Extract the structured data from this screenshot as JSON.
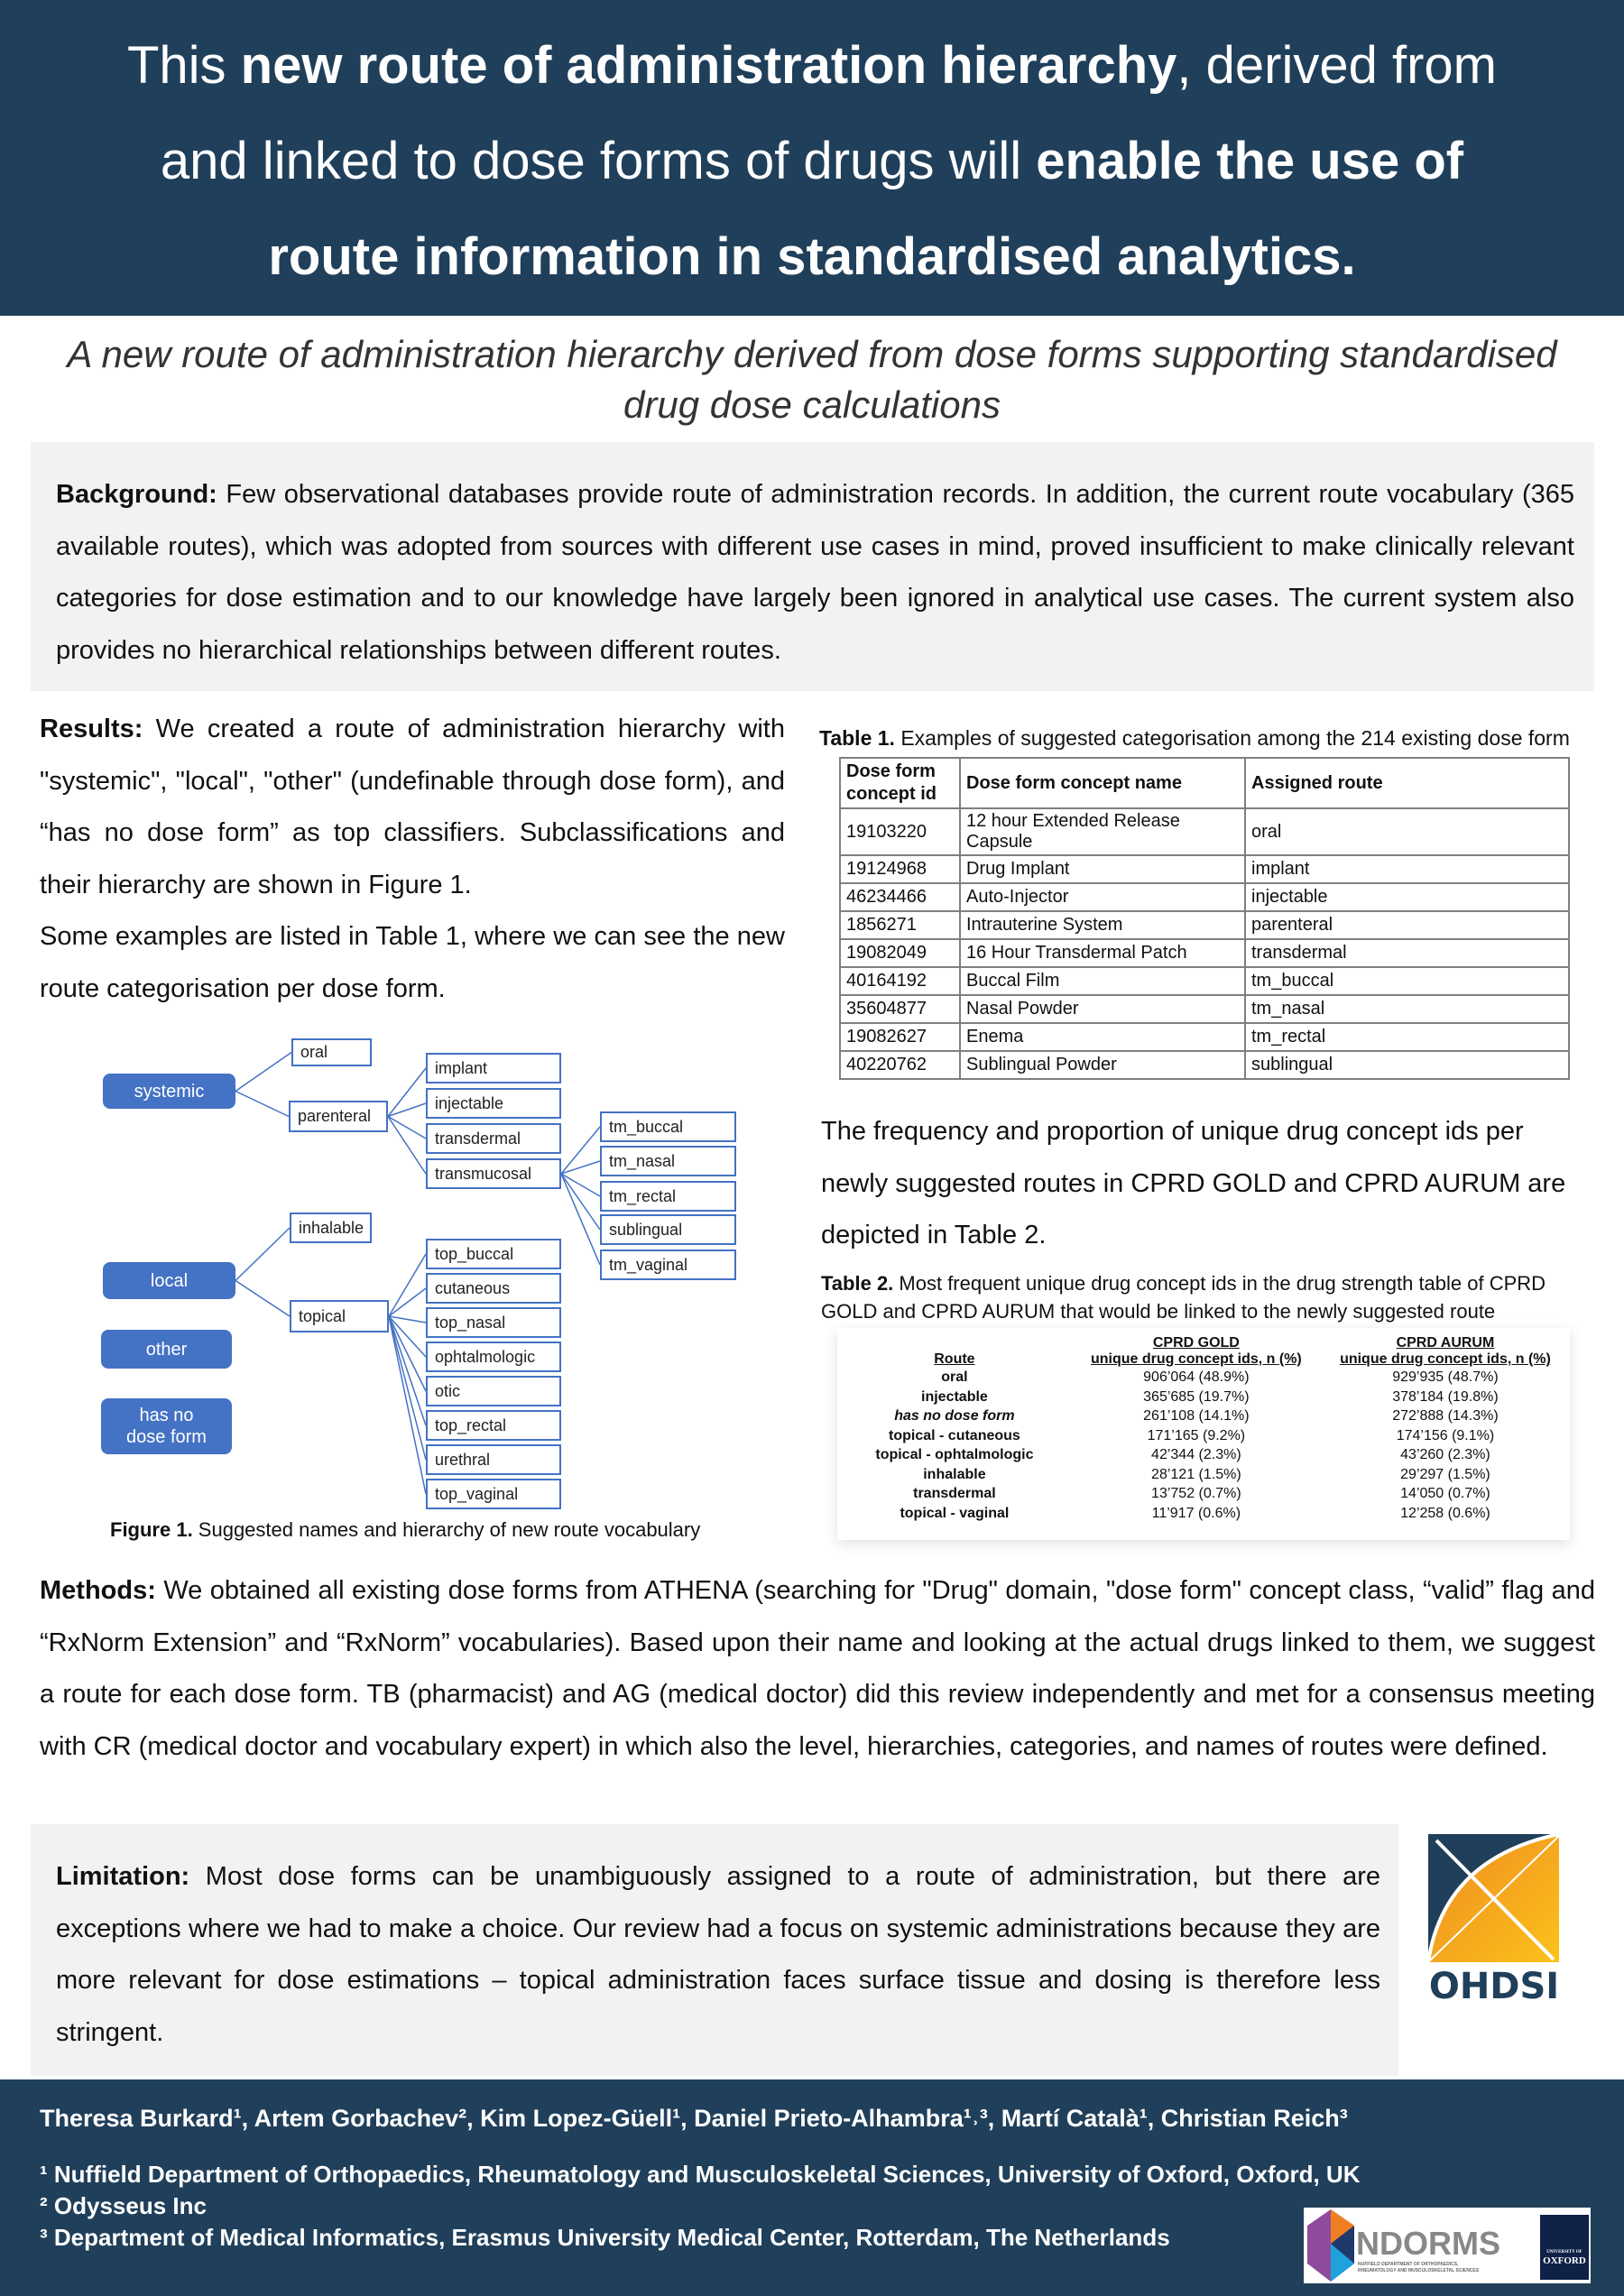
{
  "header": {
    "segments": [
      {
        "t": "This ",
        "b": false
      },
      {
        "t": "new route of administration hierarchy",
        "b": true
      },
      {
        "t": ", derived from and linked to dose forms of drugs will ",
        "b": false
      },
      {
        "t": "enable the use of route information in standardised analytics.",
        "b": true
      }
    ]
  },
  "subtitle": "A new route of administration hierarchy derived from dose forms supporting standardised drug dose calculations",
  "background": {
    "label": "Background:",
    "text": " Few observational databases provide route of administration records. In addition, the current route vocabulary (365 available routes), which was adopted from sources with different use cases in mind, proved insufficient to make clinically relevant categories for dose estimation and to our knowledge have largely been ignored in analytical use cases. The current system also provides no hierarchical relationships between different routes."
  },
  "results": {
    "label": "Results:",
    "text": " We created a route of administration hierarchy with \"systemic\", \"local\", \"other\" (undefinable through dose form), and “has no dose form” as top classifiers. Subclassifications and their hierarchy are shown in Figure 1.",
    "text2": "Some examples are listed in Table 1, where we can see the new route categorisation per dose form."
  },
  "table1": {
    "label": "Table 1.",
    "caption": " Examples of suggested categorisation among the 214 existing dose form",
    "headers": [
      "Dose form concept id",
      "Dose form concept name",
      "Assigned route"
    ],
    "rows": [
      [
        "19103220",
        "12 hour Extended Release Capsule",
        "oral"
      ],
      [
        "19124968",
        "Drug Implant",
        "implant"
      ],
      [
        "46234466",
        "Auto-Injector",
        "injectable"
      ],
      [
        "1856271",
        "Intrauterine System",
        "parenteral"
      ],
      [
        "19082049",
        "16 Hour Transdermal Patch",
        "transdermal"
      ],
      [
        "40164192",
        "Buccal Film",
        "tm_buccal"
      ],
      [
        "35604877",
        "Nasal Powder",
        "tm_nasal"
      ],
      [
        "19082627",
        "Enema",
        "tm_rectal"
      ],
      [
        "40220762",
        "Sublingual Powder",
        "sublingual"
      ]
    ]
  },
  "frequency_text": "The frequency and proportion of unique drug concept ids per newly suggested routes in CPRD GOLD and CPRD AURUM are depicted in Table 2.",
  "table2": {
    "label": "Table 2.",
    "caption": " Most frequent unique drug concept ids in the drug strength table of CPRD GOLD and CPRD AURUM that would be linked to the newly suggested route",
    "headers": {
      "route": "Route",
      "gold_title": "CPRD GOLD",
      "gold_sub": "unique drug concept ids, n (%)",
      "aurum_title": "CPRD AURUM",
      "aurum_sub": "unique drug concept ids, n (%)"
    },
    "rows": [
      [
        "oral",
        "906’064 (48.9%)",
        "929’935 (48.7%)"
      ],
      [
        "injectable",
        "365’685 (19.7%)",
        "378’184 (19.8%)"
      ],
      [
        "has no dose form",
        "261’108 (14.1%)",
        "272’888 (14.3%)"
      ],
      [
        "topical - cutaneous",
        "171’165 (9.2%)",
        "174’156 (9.1%)"
      ],
      [
        "topical - ophtalmologic",
        "42’344 (2.3%)",
        "43’260 (2.3%)"
      ],
      [
        "inhalable",
        "28’121 (1.5%)",
        "29’297 (1.5%)"
      ],
      [
        "transdermal",
        "13’752 (0.7%)",
        "14’050 (0.7%)"
      ],
      [
        "topical - vaginal",
        "11’917 (0.6%)",
        "12’258 (0.6%)"
      ]
    ]
  },
  "figure1": {
    "label": "Figure 1.",
    "caption": " Suggested names and hierarchy of new route vocabulary",
    "top": [
      "systemic",
      "local",
      "other",
      "has no dose form"
    ],
    "systemic_children": [
      "oral",
      "parenteral"
    ],
    "parenteral_children": [
      "implant",
      "injectable",
      "transdermal",
      "transmucosal"
    ],
    "transmucosal_children": [
      "tm_buccal",
      "tm_nasal",
      "tm_rectal",
      "sublingual",
      "tm_vaginal"
    ],
    "local_children": [
      "inhalable",
      "topical"
    ],
    "topical_children": [
      "top_buccal",
      "cutaneous",
      "top_nasal",
      "ophtalmologic",
      "otic",
      "top_rectal",
      "urethral",
      "top_vaginal"
    ],
    "colors": {
      "top_fill": "#4472c4",
      "line": "#4472c4"
    }
  },
  "methods": {
    "label": "Methods:",
    "text": " We obtained all existing dose forms from ATHENA (searching for \"Drug\" domain, \"dose form\" concept class, “valid” flag and “RxNorm Extension” and “RxNorm” vocabularies). Based upon their name and looking at the actual drugs linked to them, we suggest a route for each dose form. TB (pharmacist) and AG (medical doctor) did this review independently and met for a consensus meeting with CR (medical doctor and vocabulary expert) in which also the level, hierarchies, categories, and names of routes were defined."
  },
  "limitation": {
    "label": "Limitation:",
    "text": " Most dose forms can be unambiguously assigned to a route of administration, but there are exceptions where we had to make a choice. Our review had a focus on systemic administrations because they are more relevant for dose estimations – topical administration faces surface tissue and dosing is therefore less stringent."
  },
  "footer": {
    "authors": "Theresa Burkard¹, Artem Gorbachev², Kim Lopez-Güell¹, Daniel Prieto-Alhambra¹˒³, Martí Català¹, Christian Reich³",
    "affiliations": [
      "¹ Nuffield Department of Orthopaedics, Rheumatology and Musculoskeletal Sciences, University of Oxford, Oxford, UK",
      "² Odysseus Inc",
      "³ Department of Medical Informatics, Erasmus University Medical Center, Rotterdam, The Netherlands"
    ]
  },
  "logos": {
    "ohdsi": "OHDSI",
    "ndorms": "NDORMS",
    "ndorms_sub": "NUFFIELD DEPARTMENT OF ORTHOPAEDICS, RHEUMATOLOGY AND MUSCULOSKELETAL SCIENCES",
    "oxford": "UNIVERSITY OF OXFORD"
  },
  "colors": {
    "navy": "#203f5a",
    "panel": "#f2f2f2",
    "ohdsi_orange": "#f39c1f"
  }
}
